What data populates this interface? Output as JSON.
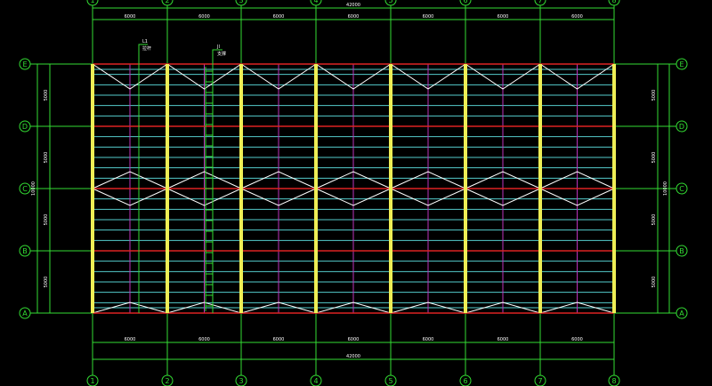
{
  "drawing": {
    "columns": [
      "1",
      "2",
      "3",
      "4",
      "5",
      "6",
      "7",
      "8"
    ],
    "rows": [
      "A",
      "B",
      "C",
      "D",
      "E"
    ],
    "bay_dims": [
      "6000",
      "6000",
      "6000",
      "6000",
      "6000",
      "6000",
      "6000"
    ],
    "total_width": "42000",
    "row_dims": [
      "5000",
      "5000",
      "5000",
      "5000"
    ],
    "half_dims": [
      "10000",
      "10000"
    ],
    "callouts": [
      {
        "tag": "L1",
        "text": "拉杆"
      },
      {
        "tag": "JI",
        "text": "支撑"
      }
    ],
    "colors": {
      "axis": "#33dd33",
      "beam": "#dd2222",
      "column": "#eeee55",
      "purlin": "#55cccc",
      "tie": "#bb33bb",
      "brace": "#ffffff",
      "text": "#ffffff"
    }
  }
}
